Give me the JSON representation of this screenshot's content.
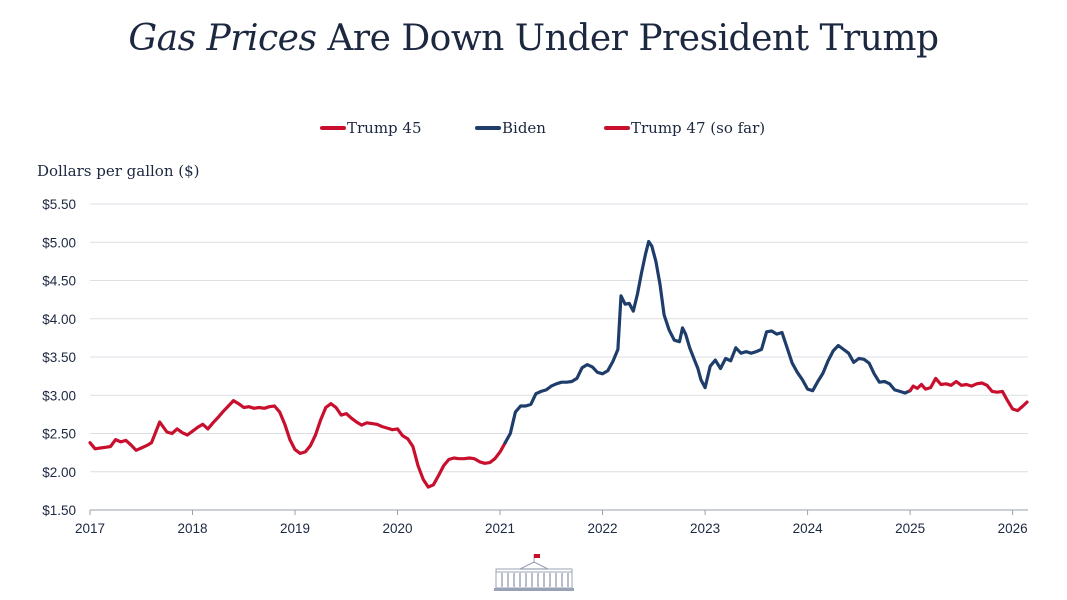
{
  "title": {
    "italic_part": "Gas Prices",
    "regular_part": " Are Down Under President Trump"
  },
  "colors": {
    "trump": "#c8102e",
    "biden": "#1f3d6b",
    "text": "#1c2740",
    "grid": "#dcdfe4"
  },
  "chart_data": {
    "type": "line",
    "title": "Gas Prices Are Down Under President Trump",
    "xlabel": "",
    "ylabel": "Dollars per gallon ($)",
    "legend_position": "top-center",
    "grid": "horizontal",
    "xlim": [
      2017.0,
      2026.15
    ],
    "ylim": [
      1.5,
      5.5
    ],
    "x_ticks": [
      {
        "value": 2017,
        "label": "2017"
      },
      {
        "value": 2018,
        "label": "2018"
      },
      {
        "value": 2019,
        "label": "2019"
      },
      {
        "value": 2020,
        "label": "2020"
      },
      {
        "value": 2021,
        "label": "2021"
      },
      {
        "value": 2022,
        "label": "2022"
      },
      {
        "value": 2023,
        "label": "2023"
      },
      {
        "value": 2024,
        "label": "2024"
      },
      {
        "value": 2025,
        "label": "2025"
      },
      {
        "value": 2026,
        "label": "2026"
      }
    ],
    "y_ticks": [
      {
        "value": 1.5,
        "label": "$1.50"
      },
      {
        "value": 2.0,
        "label": "$2.00"
      },
      {
        "value": 2.5,
        "label": "$2.50"
      },
      {
        "value": 3.0,
        "label": "$3.00"
      },
      {
        "value": 3.5,
        "label": "$3.50"
      },
      {
        "value": 4.0,
        "label": "$4.00"
      },
      {
        "value": 4.5,
        "label": "$4.50"
      },
      {
        "value": 5.0,
        "label": "$5.00"
      },
      {
        "value": 5.5,
        "label": "$5.50"
      }
    ],
    "series": [
      {
        "name": "Trump 45",
        "color": "#c8102e",
        "points": [
          [
            2017.0,
            2.38
          ],
          [
            2017.05,
            2.3
          ],
          [
            2017.1,
            2.31
          ],
          [
            2017.15,
            2.32
          ],
          [
            2017.2,
            2.33
          ],
          [
            2017.25,
            2.42
          ],
          [
            2017.3,
            2.39
          ],
          [
            2017.35,
            2.41
          ],
          [
            2017.4,
            2.35
          ],
          [
            2017.45,
            2.28
          ],
          [
            2017.5,
            2.31
          ],
          [
            2017.55,
            2.34
          ],
          [
            2017.6,
            2.38
          ],
          [
            2017.68,
            2.65
          ],
          [
            2017.75,
            2.52
          ],
          [
            2017.8,
            2.5
          ],
          [
            2017.85,
            2.56
          ],
          [
            2017.9,
            2.51
          ],
          [
            2017.95,
            2.48
          ],
          [
            2018.0,
            2.53
          ],
          [
            2018.05,
            2.58
          ],
          [
            2018.1,
            2.62
          ],
          [
            2018.15,
            2.56
          ],
          [
            2018.2,
            2.64
          ],
          [
            2018.25,
            2.71
          ],
          [
            2018.3,
            2.79
          ],
          [
            2018.35,
            2.86
          ],
          [
            2018.4,
            2.93
          ],
          [
            2018.45,
            2.89
          ],
          [
            2018.5,
            2.84
          ],
          [
            2018.55,
            2.85
          ],
          [
            2018.6,
            2.83
          ],
          [
            2018.65,
            2.84
          ],
          [
            2018.7,
            2.83
          ],
          [
            2018.75,
            2.85
          ],
          [
            2018.8,
            2.86
          ],
          [
            2018.85,
            2.78
          ],
          [
            2018.9,
            2.62
          ],
          [
            2018.95,
            2.42
          ],
          [
            2019.0,
            2.29
          ],
          [
            2019.05,
            2.24
          ],
          [
            2019.1,
            2.26
          ],
          [
            2019.15,
            2.34
          ],
          [
            2019.2,
            2.48
          ],
          [
            2019.25,
            2.68
          ],
          [
            2019.3,
            2.84
          ],
          [
            2019.35,
            2.89
          ],
          [
            2019.4,
            2.84
          ],
          [
            2019.45,
            2.74
          ],
          [
            2019.5,
            2.76
          ],
          [
            2019.55,
            2.7
          ],
          [
            2019.6,
            2.65
          ],
          [
            2019.65,
            2.61
          ],
          [
            2019.7,
            2.64
          ],
          [
            2019.75,
            2.63
          ],
          [
            2019.8,
            2.62
          ],
          [
            2019.85,
            2.59
          ],
          [
            2019.9,
            2.57
          ],
          [
            2019.95,
            2.55
          ],
          [
            2020.0,
            2.56
          ],
          [
            2020.05,
            2.47
          ],
          [
            2020.1,
            2.43
          ],
          [
            2020.15,
            2.33
          ],
          [
            2020.2,
            2.08
          ],
          [
            2020.25,
            1.9
          ],
          [
            2020.3,
            1.8
          ],
          [
            2020.35,
            1.83
          ],
          [
            2020.4,
            1.95
          ],
          [
            2020.45,
            2.08
          ],
          [
            2020.5,
            2.16
          ],
          [
            2020.55,
            2.18
          ],
          [
            2020.6,
            2.17
          ],
          [
            2020.65,
            2.17
          ],
          [
            2020.7,
            2.18
          ],
          [
            2020.75,
            2.17
          ],
          [
            2020.8,
            2.13
          ],
          [
            2020.85,
            2.11
          ],
          [
            2020.9,
            2.12
          ],
          [
            2020.95,
            2.17
          ],
          [
            2021.0,
            2.26
          ],
          [
            2021.05,
            2.38
          ]
        ]
      },
      {
        "name": "Biden",
        "color": "#1f3d6b",
        "points": [
          [
            2021.05,
            2.38
          ],
          [
            2021.1,
            2.5
          ],
          [
            2021.15,
            2.78
          ],
          [
            2021.2,
            2.86
          ],
          [
            2021.25,
            2.86
          ],
          [
            2021.3,
            2.88
          ],
          [
            2021.35,
            3.02
          ],
          [
            2021.4,
            3.05
          ],
          [
            2021.45,
            3.07
          ],
          [
            2021.5,
            3.12
          ],
          [
            2021.55,
            3.15
          ],
          [
            2021.6,
            3.17
          ],
          [
            2021.65,
            3.17
          ],
          [
            2021.7,
            3.18
          ],
          [
            2021.75,
            3.22
          ],
          [
            2021.8,
            3.36
          ],
          [
            2021.85,
            3.4
          ],
          [
            2021.9,
            3.37
          ],
          [
            2021.95,
            3.3
          ],
          [
            2022.0,
            3.28
          ],
          [
            2022.05,
            3.32
          ],
          [
            2022.1,
            3.44
          ],
          [
            2022.15,
            3.6
          ],
          [
            2022.18,
            4.3
          ],
          [
            2022.22,
            4.19
          ],
          [
            2022.26,
            4.2
          ],
          [
            2022.3,
            4.1
          ],
          [
            2022.34,
            4.32
          ],
          [
            2022.38,
            4.6
          ],
          [
            2022.42,
            4.85
          ],
          [
            2022.45,
            5.01
          ],
          [
            2022.48,
            4.95
          ],
          [
            2022.52,
            4.75
          ],
          [
            2022.56,
            4.45
          ],
          [
            2022.6,
            4.05
          ],
          [
            2022.65,
            3.85
          ],
          [
            2022.7,
            3.72
          ],
          [
            2022.75,
            3.7
          ],
          [
            2022.78,
            3.88
          ],
          [
            2022.81,
            3.8
          ],
          [
            2022.85,
            3.62
          ],
          [
            2022.9,
            3.45
          ],
          [
            2022.93,
            3.35
          ],
          [
            2022.96,
            3.2
          ],
          [
            2023.0,
            3.1
          ],
          [
            2023.05,
            3.38
          ],
          [
            2023.1,
            3.46
          ],
          [
            2023.15,
            3.35
          ],
          [
            2023.2,
            3.48
          ],
          [
            2023.25,
            3.45
          ],
          [
            2023.3,
            3.62
          ],
          [
            2023.35,
            3.55
          ],
          [
            2023.4,
            3.57
          ],
          [
            2023.45,
            3.55
          ],
          [
            2023.5,
            3.57
          ],
          [
            2023.55,
            3.6
          ],
          [
            2023.6,
            3.83
          ],
          [
            2023.65,
            3.84
          ],
          [
            2023.7,
            3.8
          ],
          [
            2023.75,
            3.82
          ],
          [
            2023.8,
            3.62
          ],
          [
            2023.85,
            3.42
          ],
          [
            2023.9,
            3.3
          ],
          [
            2023.95,
            3.2
          ],
          [
            2024.0,
            3.08
          ],
          [
            2024.05,
            3.06
          ],
          [
            2024.1,
            3.18
          ],
          [
            2024.15,
            3.29
          ],
          [
            2024.2,
            3.45
          ],
          [
            2024.25,
            3.58
          ],
          [
            2024.3,
            3.65
          ],
          [
            2024.35,
            3.6
          ],
          [
            2024.4,
            3.55
          ],
          [
            2024.45,
            3.43
          ],
          [
            2024.5,
            3.48
          ],
          [
            2024.55,
            3.47
          ],
          [
            2024.6,
            3.42
          ],
          [
            2024.65,
            3.28
          ],
          [
            2024.7,
            3.17
          ],
          [
            2024.75,
            3.18
          ],
          [
            2024.8,
            3.15
          ],
          [
            2024.85,
            3.07
          ],
          [
            2024.9,
            3.05
          ],
          [
            2024.95,
            3.03
          ],
          [
            2025.0,
            3.06
          ]
        ]
      },
      {
        "name": "Trump 47 (so far)",
        "color": "#c8102e",
        "points": [
          [
            2025.0,
            3.06
          ],
          [
            2025.03,
            3.12
          ],
          [
            2025.07,
            3.09
          ],
          [
            2025.11,
            3.14
          ],
          [
            2025.15,
            3.08
          ],
          [
            2025.2,
            3.1
          ],
          [
            2025.25,
            3.22
          ],
          [
            2025.3,
            3.14
          ],
          [
            2025.35,
            3.15
          ],
          [
            2025.4,
            3.13
          ],
          [
            2025.45,
            3.18
          ],
          [
            2025.5,
            3.13
          ],
          [
            2025.55,
            3.14
          ],
          [
            2025.6,
            3.12
          ],
          [
            2025.65,
            3.15
          ],
          [
            2025.7,
            3.16
          ],
          [
            2025.75,
            3.13
          ],
          [
            2025.8,
            3.05
          ],
          [
            2025.85,
            3.04
          ],
          [
            2025.9,
            3.05
          ],
          [
            2025.95,
            2.93
          ],
          [
            2026.0,
            2.82
          ],
          [
            2026.05,
            2.8
          ],
          [
            2026.1,
            2.86
          ],
          [
            2026.14,
            2.91
          ]
        ]
      }
    ]
  }
}
